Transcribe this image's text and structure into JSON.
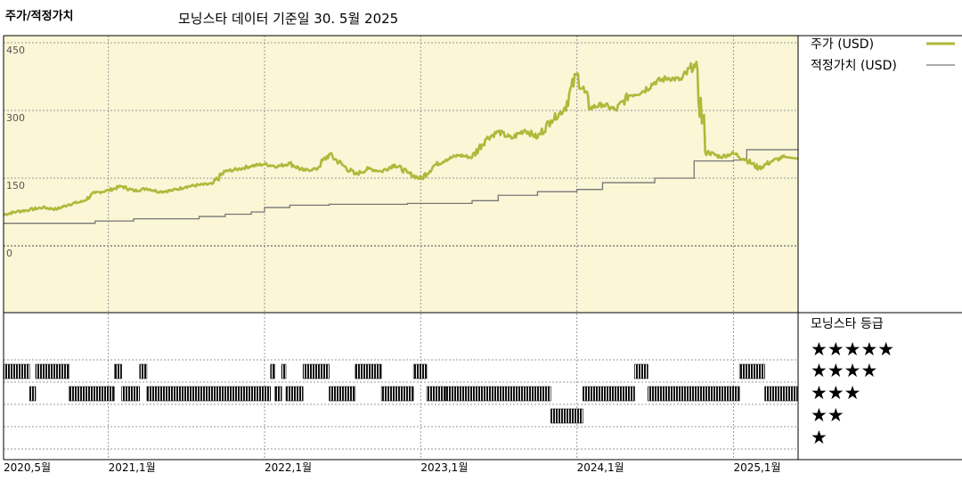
{
  "header": {
    "title": "주가/적정가치",
    "subtitle": "모닝스타 데이터 기준일 30. 5월 2025"
  },
  "chart_data": {
    "type": "line",
    "ylim": [
      0,
      450
    ],
    "ytick_labels": [
      "450",
      "300",
      "150",
      "0"
    ],
    "yticks": [
      450,
      300,
      150,
      0
    ],
    "x_start": "2020-05",
    "x_end": "2025-05",
    "xtick_labels": [
      "2020,5월",
      "2021,1월",
      "2022,1월",
      "2023,1월",
      "2024,1월",
      "2025,1월"
    ],
    "xticks": [
      "2020-05",
      "2021-01",
      "2022-01",
      "2023-01",
      "2024-01",
      "2025-01"
    ],
    "grid": true,
    "series": [
      {
        "name": "주가 (USD)",
        "color": "#b0b83a",
        "points": [
          [
            "2020-05-01",
            69
          ],
          [
            "2020-06-01",
            76
          ],
          [
            "2020-07-01",
            80
          ],
          [
            "2020-08-01",
            85
          ],
          [
            "2020-09-01",
            81
          ],
          [
            "2020-10-01",
            92
          ],
          [
            "2020-11-01",
            98
          ],
          [
            "2020-12-01",
            117
          ],
          [
            "2021-01-01",
            123
          ],
          [
            "2021-02-01",
            132
          ],
          [
            "2021-03-01",
            122
          ],
          [
            "2021-04-01",
            127
          ],
          [
            "2021-05-01",
            120
          ],
          [
            "2021-06-01",
            123
          ],
          [
            "2021-07-01",
            131
          ],
          [
            "2021-08-01",
            135
          ],
          [
            "2021-09-01",
            137
          ],
          [
            "2021-10-01",
            165
          ],
          [
            "2021-11-01",
            170
          ],
          [
            "2021-12-01",
            177
          ],
          [
            "2022-01-01",
            181
          ],
          [
            "2022-02-01",
            176
          ],
          [
            "2022-03-01",
            183
          ],
          [
            "2022-04-01",
            167
          ],
          [
            "2022-05-01",
            170
          ],
          [
            "2022-06-01",
            203
          ],
          [
            "2022-07-01",
            180
          ],
          [
            "2022-08-01",
            158
          ],
          [
            "2022-09-01",
            171
          ],
          [
            "2022-10-01",
            165
          ],
          [
            "2022-11-01",
            180
          ],
          [
            "2022-12-01",
            162
          ],
          [
            "2023-01-01",
            148
          ],
          [
            "2023-02-01",
            178
          ],
          [
            "2023-03-01",
            191
          ],
          [
            "2023-04-01",
            201
          ],
          [
            "2023-05-01",
            196
          ],
          [
            "2023-06-01",
            236
          ],
          [
            "2023-07-01",
            253
          ],
          [
            "2023-08-01",
            238
          ],
          [
            "2023-09-01",
            257
          ],
          [
            "2023-10-01",
            240
          ],
          [
            "2023-11-01",
            278
          ],
          [
            "2023-12-01",
            301
          ],
          [
            "2024-01-01",
            380
          ],
          [
            "2024-02-01",
            306
          ],
          [
            "2024-03-01",
            313
          ],
          [
            "2024-04-01",
            301
          ],
          [
            "2024-05-01",
            333
          ],
          [
            "2024-06-01",
            341
          ],
          [
            "2024-07-01",
            363
          ],
          [
            "2024-08-01",
            372
          ],
          [
            "2024-09-01",
            368
          ],
          [
            "2024-10-01",
            402
          ],
          [
            "2024-11-01",
            208
          ],
          [
            "2024-12-01",
            197
          ],
          [
            "2025-01-01",
            205
          ],
          [
            "2025-02-01",
            190
          ],
          [
            "2025-03-01",
            172
          ],
          [
            "2025-04-01",
            188
          ],
          [
            "2025-05-01",
            197
          ]
        ]
      },
      {
        "name": "적정가치 (USD)",
        "color": "#777777",
        "steps": [
          [
            "2020-05-01",
            50
          ],
          [
            "2020-12-01",
            55
          ],
          [
            "2021-03-01",
            60
          ],
          [
            "2021-08-01",
            65
          ],
          [
            "2021-10-01",
            70
          ],
          [
            "2021-12-01",
            75
          ],
          [
            "2022-01-01",
            85
          ],
          [
            "2022-03-01",
            90
          ],
          [
            "2022-06-01",
            92
          ],
          [
            "2022-12-01",
            94
          ],
          [
            "2023-05-01",
            100
          ],
          [
            "2023-07-01",
            112
          ],
          [
            "2023-10-01",
            120
          ],
          [
            "2024-01-01",
            125
          ],
          [
            "2024-03-01",
            140
          ],
          [
            "2024-07-01",
            150
          ],
          [
            "2024-10-01",
            188
          ],
          [
            "2025-01-01",
            190
          ],
          [
            "2025-02-01",
            213
          ]
        ]
      }
    ],
    "ratings": {
      "title": "모닝스타 등급",
      "levels": [
        5,
        4,
        3,
        2,
        1
      ],
      "star_labels": [
        "★★★★★",
        "★★★★",
        "★★★",
        "★★",
        "★"
      ],
      "periods": [
        [
          "2020-05-01",
          "2020-07-01",
          4
        ],
        [
          "2020-07-01",
          "2020-07-15",
          3
        ],
        [
          "2020-07-15",
          "2020-10-01",
          4
        ],
        [
          "2020-10-01",
          "2021-01-15",
          3
        ],
        [
          "2021-01-15",
          "2021-02-01",
          4
        ],
        [
          "2021-02-01",
          "2021-03-15",
          3
        ],
        [
          "2021-03-15",
          "2021-04-01",
          4
        ],
        [
          "2021-04-01",
          "2022-01-15",
          3
        ],
        [
          "2022-01-15",
          "2022-01-25",
          4
        ],
        [
          "2022-01-25",
          "2022-02-10",
          3
        ],
        [
          "2022-02-10",
          "2022-02-20",
          4
        ],
        [
          "2022-02-20",
          "2022-04-01",
          3
        ],
        [
          "2022-04-01",
          "2022-06-01",
          4
        ],
        [
          "2022-06-01",
          "2022-08-01",
          3
        ],
        [
          "2022-08-01",
          "2022-10-01",
          4
        ],
        [
          "2022-10-01",
          "2022-12-15",
          3
        ],
        [
          "2022-12-15",
          "2023-01-15",
          4
        ],
        [
          "2023-01-15",
          "2023-03-01",
          3
        ],
        [
          "2023-03-01",
          "2023-11-01",
          3
        ],
        [
          "2023-11-01",
          "2024-01-15",
          2
        ],
        [
          "2024-01-15",
          "2024-05-15",
          3
        ],
        [
          "2024-05-15",
          "2024-06-15",
          4
        ],
        [
          "2024-06-15",
          "2025-01-15",
          3
        ],
        [
          "2025-01-15",
          "2025-03-15",
          4
        ],
        [
          "2025-03-15",
          "2025-05-30",
          3
        ]
      ]
    }
  }
}
